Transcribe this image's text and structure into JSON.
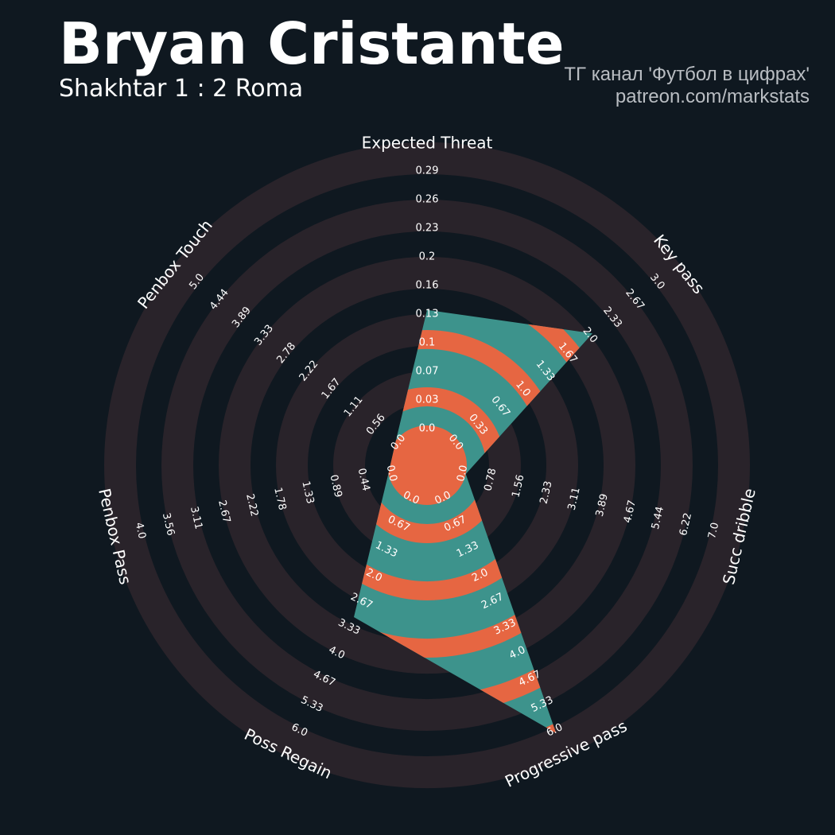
{
  "header": {
    "title": "Bryan Cristante",
    "subtitle": "Shakhtar 1 : 2 Roma",
    "credit_line1": "ТГ канал 'Футбол в цифрах'",
    "credit_line2": "patreon.com/markstats"
  },
  "colors": {
    "background": "#0f1820",
    "ring_band": "#29232a",
    "fill_teal": "#3d938c",
    "fill_orange": "#e66642",
    "text": "#ffffff"
  },
  "chart_data": {
    "type": "radar",
    "title": "",
    "grid": true,
    "params": [
      {
        "name": "Expected Threat",
        "value": 0.13,
        "ticks": [
          "0.0",
          "0.03",
          "0.07",
          "0.1",
          "0.13",
          "0.16",
          "0.2",
          "0.23",
          "0.26",
          "0.29"
        ]
      },
      {
        "name": "Key pass",
        "value": 2.0,
        "ticks": [
          "0.0",
          "0.33",
          "0.67",
          "1.0",
          "1.33",
          "1.67",
          "2.0",
          "2.33",
          "2.67",
          "3.0"
        ]
      },
      {
        "name": "Succ dribble",
        "value": 0.0,
        "ticks": [
          "0.0",
          "0.78",
          "1.56",
          "2.33",
          "3.11",
          "3.89",
          "4.67",
          "5.44",
          "6.22",
          "7.0"
        ]
      },
      {
        "name": "Progressive pass",
        "value": 6.0,
        "ticks": [
          "0.0",
          "0.67",
          "1.33",
          "2.0",
          "2.67",
          "3.33",
          "4.0",
          "4.67",
          "5.33",
          "6.0"
        ]
      },
      {
        "name": "Poss Regain",
        "value": 3.0,
        "ticks": [
          "0.0",
          "0.67",
          "1.33",
          "2.0",
          "2.67",
          "3.33",
          "4.0",
          "4.67",
          "5.33",
          "6.0"
        ]
      },
      {
        "name": "Penbox Pass",
        "value": 0.0,
        "ticks": [
          "0.0",
          "0.44",
          "0.89",
          "1.33",
          "1.78",
          "2.22",
          "2.67",
          "3.11",
          "3.56",
          "4.0"
        ]
      },
      {
        "name": "Penbox Touch",
        "value": 0.0,
        "ticks": [
          "0.0",
          "0.56",
          "1.11",
          "1.67",
          "2.22",
          "2.78",
          "3.33",
          "3.89",
          "4.44",
          "5.0"
        ]
      }
    ]
  }
}
